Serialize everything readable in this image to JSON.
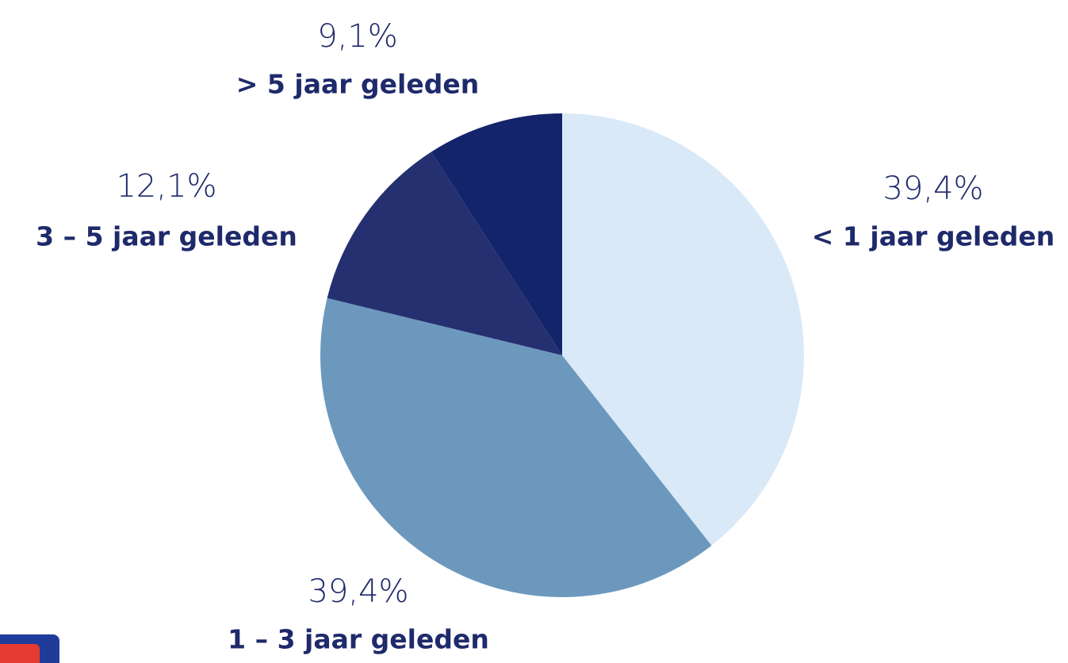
{
  "chart_data": {
    "type": "pie",
    "categories": [
      "< 1 jaar geleden",
      "1 – 3 jaar geleden",
      "3 – 5 jaar geleden",
      "> 5 jaar geleden"
    ],
    "values": [
      39.4,
      39.4,
      12.1,
      9.1
    ],
    "value_labels": [
      "39,4%",
      "39,4%",
      "12,1%",
      "9,1%"
    ],
    "colors": [
      "#d9e9f8",
      "#6c98bd",
      "#253070",
      "#14246a"
    ]
  }
}
